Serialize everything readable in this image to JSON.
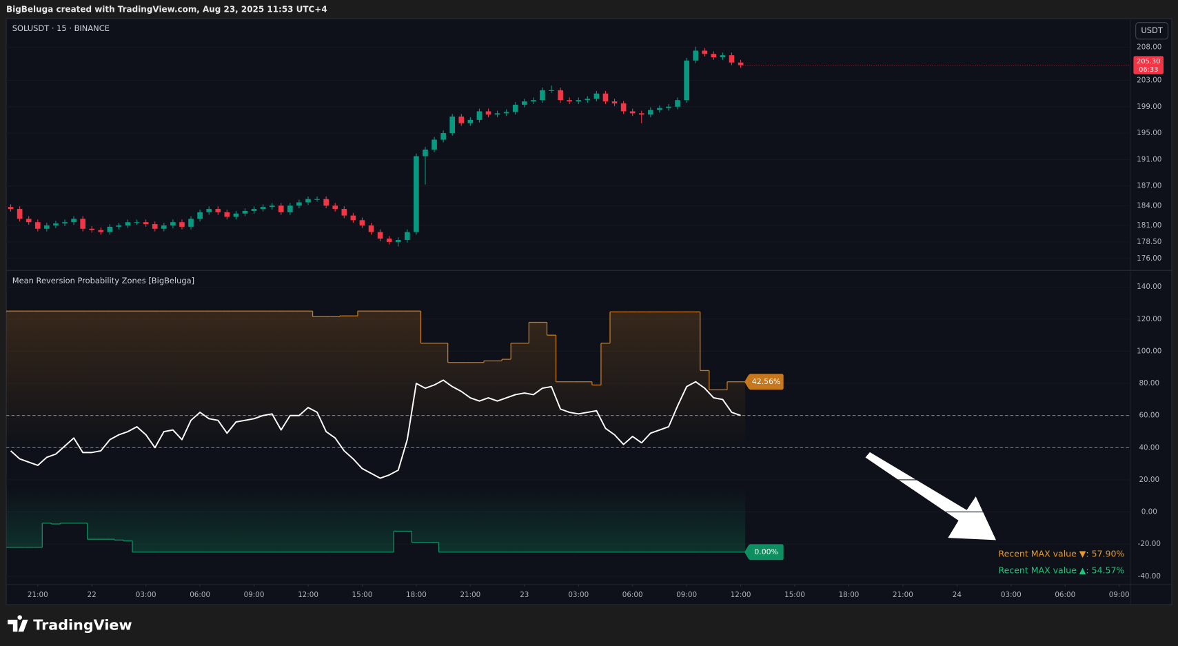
{
  "header": {
    "title": "BigBeluga created with TradingView.com, Aug 23, 2025 11:53 UTC+4"
  },
  "footer": {
    "logo": "TradingView"
  },
  "chart_data": [
    {
      "type": "candlestick",
      "title": "SOLUSDT · 15 · BINANCE",
      "currency_button": "USDT",
      "last_price_label": "205.30",
      "countdown": "06:33",
      "up_color": "#089981",
      "down_color": "#f23645",
      "xlim": [
        -0.5,
        124.25
      ],
      "ylim": [
        174.18,
        212.33
      ],
      "yticks": [
        {
          "value": 208,
          "label": "208.00"
        },
        {
          "value": 203,
          "label": "203.00"
        },
        {
          "value": 199,
          "label": "199.00"
        },
        {
          "value": 195,
          "label": "195.00"
        },
        {
          "value": 191,
          "label": "191.00"
        },
        {
          "value": 187,
          "label": "187.00"
        },
        {
          "value": 184,
          "label": "184.00"
        },
        {
          "value": 181,
          "label": "181.00"
        },
        {
          "value": 178.5,
          "label": "178.50"
        },
        {
          "value": 176,
          "label": "176.00"
        }
      ],
      "open": [
        183.8,
        183.5,
        182,
        181.5,
        180.5,
        181,
        181.3,
        181.5,
        182,
        180.5,
        180.3,
        180,
        180.8,
        181,
        181.5,
        181.5,
        181.2,
        180.5,
        181,
        181.5,
        180.8,
        182,
        183,
        183.5,
        183,
        182.3,
        182.8,
        183.2,
        183.5,
        183.8,
        184,
        183,
        184,
        184.5,
        185,
        185,
        184,
        183.5,
        182.5,
        181.8,
        181,
        180,
        179,
        178.5,
        178.8,
        180,
        191.5,
        192.5,
        194,
        195,
        197.5,
        196.5,
        197,
        198.3,
        197.8,
        198,
        198.2,
        199.3,
        199.8,
        200,
        201.5,
        201.5,
        200,
        199.8,
        200,
        200.2,
        201,
        199.8,
        199.5,
        198.3,
        198,
        197.8,
        198.5,
        198.8,
        199,
        200,
        206,
        207.5,
        207,
        206.5,
        206.8,
        205.7
      ],
      "high": [
        184.2,
        183.9,
        182.4,
        181.9,
        181.4,
        181.7,
        181.9,
        182.4,
        182.4,
        180.9,
        180.7,
        181.2,
        181.4,
        181.9,
        181.9,
        181.9,
        181.6,
        181.4,
        181.9,
        181.9,
        182.4,
        183.4,
        183.9,
        183.9,
        183.4,
        183.2,
        183.6,
        183.9,
        184.2,
        184.4,
        184.4,
        184.4,
        184.9,
        185.4,
        185.4,
        185.4,
        184.4,
        183.9,
        182.9,
        182.2,
        181.4,
        180.4,
        179.4,
        179.2,
        180.4,
        191.9,
        192.9,
        194.4,
        195.4,
        197.9,
        197.9,
        197.4,
        198.7,
        198.7,
        198.4,
        198.6,
        199.7,
        200.2,
        200.4,
        201.9,
        202.2,
        201.9,
        200.4,
        200.4,
        200.6,
        201.4,
        201.4,
        200.2,
        199.9,
        198.7,
        198.4,
        198.9,
        199.2,
        199.4,
        200.4,
        206.4,
        208.1,
        207.9,
        207.4,
        207.2,
        207.2,
        206.1
      ],
      "low": [
        183.1,
        181.6,
        181.1,
        180.1,
        180.1,
        180.6,
        180.9,
        181.1,
        180.1,
        179.9,
        179.6,
        179.6,
        180.4,
        180.6,
        181.1,
        180.8,
        180.1,
        180.1,
        180.6,
        180.4,
        180.4,
        181.6,
        182.6,
        182.6,
        181.9,
        181.9,
        182.4,
        182.8,
        183.1,
        183.4,
        182.6,
        182.6,
        183.6,
        184.1,
        184.6,
        183.6,
        183.1,
        182.1,
        181.4,
        180.6,
        179.6,
        178.6,
        178.1,
        177.8,
        178.4,
        179.6,
        187.2,
        192.1,
        193.6,
        194.6,
        196.1,
        196.1,
        196.6,
        197.4,
        197.4,
        197.6,
        197.8,
        198.9,
        199.4,
        199.6,
        201.1,
        199.6,
        199.4,
        199.4,
        199.6,
        199.8,
        199.4,
        199.1,
        197.9,
        197.6,
        196.5,
        197.4,
        198.1,
        198.4,
        198.6,
        199.6,
        205.6,
        206.6,
        206.1,
        206.1,
        205.3,
        204.9
      ],
      "close": [
        183.5,
        182,
        181.5,
        180.5,
        181,
        181.3,
        181.5,
        182,
        180.5,
        180.3,
        180,
        180.8,
        181,
        181.5,
        181.5,
        181.2,
        180.5,
        181,
        181.5,
        180.8,
        182,
        183,
        183.5,
        183,
        182.3,
        182.8,
        183.2,
        183.5,
        183.8,
        184,
        183,
        184,
        184.5,
        185,
        185,
        184,
        183.5,
        182.5,
        181.8,
        181,
        180,
        179,
        178.5,
        178.8,
        180,
        191.5,
        192.5,
        194,
        195,
        197.5,
        196.5,
        197,
        198.3,
        197.8,
        198,
        198.2,
        199.3,
        199.8,
        200,
        201.5,
        201.5,
        200,
        199.8,
        200,
        200.2,
        201,
        199.8,
        199.5,
        198.3,
        198,
        197.8,
        198.5,
        198.8,
        199,
        200,
        206,
        207.5,
        207,
        206.5,
        206.8,
        205.7,
        205.3
      ]
    },
    {
      "type": "line",
      "title": "Mean Reversion Probability Zones [BigBeluga]",
      "xlim": [
        -0.5,
        124.25
      ],
      "ylim": [
        -45.1,
        150.3
      ],
      "yticks": [
        {
          "value": 140,
          "label": "140.00"
        },
        {
          "value": 120,
          "label": "120.00"
        },
        {
          "value": 100,
          "label": "100.00"
        },
        {
          "value": 80,
          "label": "80.00"
        },
        {
          "value": 60,
          "label": "60.00"
        },
        {
          "value": 40,
          "label": "40.00"
        },
        {
          "value": 20,
          "label": "20.00"
        },
        {
          "value": 0,
          "label": "0.00"
        },
        {
          "value": -20,
          "label": "-20.00"
        },
        {
          "value": -40,
          "label": "-40.00"
        }
      ],
      "xticks": [
        {
          "value": 3,
          "label": "21:00"
        },
        {
          "value": 9,
          "label": "22"
        },
        {
          "value": 15,
          "label": "03:00"
        },
        {
          "value": 21,
          "label": "06:00"
        },
        {
          "value": 27,
          "label": "09:00"
        },
        {
          "value": 33,
          "label": "12:00"
        },
        {
          "value": 39,
          "label": "15:00"
        },
        {
          "value": 45,
          "label": "18:00"
        },
        {
          "value": 51,
          "label": "21:00"
        },
        {
          "value": 57,
          "label": "23"
        },
        {
          "value": 63,
          "label": "03:00"
        },
        {
          "value": 69,
          "label": "06:00"
        },
        {
          "value": 75,
          "label": "09:00"
        },
        {
          "value": 81,
          "label": "12:00"
        },
        {
          "value": 87,
          "label": "15:00"
        },
        {
          "value": 93,
          "label": "18:00"
        },
        {
          "value": 99,
          "label": "21:00"
        },
        {
          "value": 105,
          "label": "24"
        },
        {
          "value": 111,
          "label": "03:00"
        },
        {
          "value": 117,
          "label": "06:00"
        },
        {
          "value": 123,
          "label": "09:00"
        }
      ],
      "hlines": [
        60,
        40
      ],
      "series": [
        {
          "color": "#c7771c",
          "step": true,
          "badge": "42.56%",
          "values": [
            125,
            125,
            125,
            125,
            125,
            125,
            125,
            125,
            125,
            125,
            125,
            125,
            125,
            125,
            125,
            125,
            125,
            125,
            125,
            125,
            125,
            125,
            125,
            125,
            125,
            125,
            125,
            125,
            125,
            125,
            125,
            125,
            125,
            125,
            121.5,
            121.5,
            121.5,
            122,
            122,
            125,
            125,
            125,
            125,
            125,
            125,
            125,
            105,
            105,
            105,
            93,
            93,
            93,
            93,
            94,
            94,
            95,
            105,
            105,
            118,
            118,
            110,
            81,
            81,
            81,
            81,
            79,
            105,
            124.5,
            124.5,
            124.5,
            124.5,
            124.5,
            124.5,
            124.5,
            124.5,
            124.5,
            124.5,
            88,
            76,
            76,
            81,
            81
          ]
        },
        {
          "color": "#0e8f62",
          "step": true,
          "badge": "0.00%",
          "values": [
            -22,
            -22,
            -22,
            -22,
            -7,
            -7.5,
            -7,
            -7,
            -7,
            -17,
            -17,
            -17,
            -17.5,
            -18,
            -25,
            -25,
            -25,
            -25,
            -25,
            -25,
            -25,
            -25,
            -25,
            -25,
            -25,
            -25,
            -25,
            -25,
            -25,
            -25,
            -25,
            -25,
            -25,
            -25,
            -25,
            -25,
            -25,
            -25,
            -25,
            -25,
            -25,
            -25,
            -25,
            -12,
            -12,
            -19,
            -19,
            -19,
            -25,
            -25,
            -25,
            -25,
            -25,
            -25,
            -25,
            -25,
            -25,
            -25,
            -25,
            -25,
            -25,
            -25,
            -25,
            -25,
            -25,
            -25,
            -25,
            -25,
            -25,
            -25,
            -25,
            -25,
            -25,
            -25,
            -25,
            -25,
            -25,
            -25,
            -25,
            -25,
            -25,
            -25
          ]
        },
        {
          "color": "#ffffff",
          "values": [
            38,
            33,
            31,
            29,
            34,
            36,
            41,
            46,
            37,
            37,
            38,
            45,
            48,
            50,
            53,
            48,
            40,
            50,
            51,
            45,
            57,
            62,
            58,
            57,
            49,
            56,
            57,
            58,
            60,
            61,
            51,
            60,
            60,
            65,
            62,
            50,
            46,
            38,
            33,
            27,
            24,
            21,
            23,
            26,
            45,
            80,
            77,
            79,
            82,
            78,
            75,
            71,
            69,
            71,
            69,
            71,
            73,
            74,
            73,
            77,
            78,
            64,
            62,
            61,
            62,
            63,
            52,
            48,
            42,
            47,
            43,
            49,
            51,
            53,
            66,
            78,
            81,
            77,
            71,
            70,
            62,
            60
          ]
        }
      ],
      "annotations": [
        {
          "text": "Recent MAX value ▼: 57.90%",
          "color": "#e69a2e"
        },
        {
          "text": "Recent MAX value ▲: 54.57%",
          "color": "#22c27a"
        }
      ]
    }
  ]
}
